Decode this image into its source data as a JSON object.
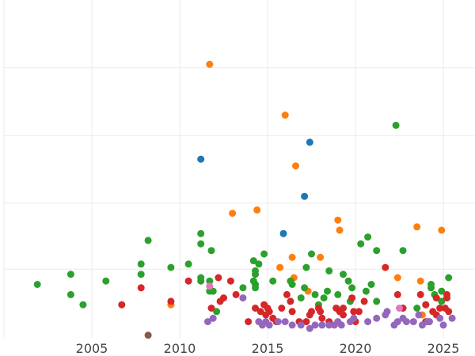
{
  "chart_data": {
    "type": "scatter",
    "title": "",
    "xlabel": "",
    "ylabel": "",
    "xlim": [
      2000.0,
      2026.8
    ],
    "ylim": [
      0,
      1
    ],
    "x_ticks": [
      2005,
      2010,
      2015,
      2020,
      2025
    ],
    "x_tick_labels": [
      "2005",
      "2010",
      "2015",
      "2020",
      "2025"
    ],
    "y_gridlines": [
      0.205,
      0.4,
      0.6,
      0.8
    ],
    "grid": true,
    "legend": "none",
    "colors": {
      "blue": "#1f77b4",
      "orange": "#ff7f0e",
      "green": "#2ca02c",
      "red": "#d62728",
      "purple": "#9467bd",
      "brown": "#8c564b",
      "pink": "#e377c2",
      "grid": "#ebebeb",
      "tick_text": "#444444"
    },
    "series": [
      {
        "color": "#1f77b4",
        "points": [
          [
            2011.2,
            0.53
          ],
          [
            2017.4,
            0.58
          ],
          [
            2017.1,
            0.42
          ],
          [
            2015.9,
            0.31
          ]
        ]
      },
      {
        "color": "#ff7f0e",
        "points": [
          [
            2011.7,
            0.81
          ],
          [
            2016.0,
            0.66
          ],
          [
            2016.6,
            0.51
          ],
          [
            2013.0,
            0.37
          ],
          [
            2014.4,
            0.38
          ],
          [
            2019.0,
            0.35
          ],
          [
            2019.1,
            0.32
          ],
          [
            2023.5,
            0.33
          ],
          [
            2024.9,
            0.32
          ],
          [
            2016.4,
            0.24
          ],
          [
            2018.0,
            0.24
          ],
          [
            2015.7,
            0.21
          ],
          [
            2022.4,
            0.18
          ],
          [
            2023.7,
            0.17
          ],
          [
            2017.3,
            0.14
          ],
          [
            2009.5,
            0.1
          ],
          [
            2023.8,
            0.07
          ],
          [
            2016.5,
            0.18
          ]
        ]
      },
      {
        "color": "#2ca02c",
        "points": [
          [
            2022.3,
            0.63
          ],
          [
            2001.9,
            0.16
          ],
          [
            2003.8,
            0.19
          ],
          [
            2003.8,
            0.13
          ],
          [
            2004.5,
            0.1
          ],
          [
            2005.8,
            0.17
          ],
          [
            2007.8,
            0.19
          ],
          [
            2007.8,
            0.22
          ],
          [
            2008.2,
            0.29
          ],
          [
            2009.5,
            0.21
          ],
          [
            2010.5,
            0.22
          ],
          [
            2011.2,
            0.31
          ],
          [
            2011.2,
            0.28
          ],
          [
            2011.8,
            0.26
          ],
          [
            2011.2,
            0.18
          ],
          [
            2011.2,
            0.17
          ],
          [
            2011.7,
            0.17
          ],
          [
            2011.9,
            0.14
          ],
          [
            2011.7,
            0.14
          ],
          [
            2012.1,
            0.08
          ],
          [
            2013.6,
            0.15
          ],
          [
            2014.2,
            0.23
          ],
          [
            2014.5,
            0.22
          ],
          [
            2014.3,
            0.2
          ],
          [
            2014.3,
            0.19
          ],
          [
            2014.2,
            0.17
          ],
          [
            2014.3,
            0.16
          ],
          [
            2014.3,
            0.15
          ],
          [
            2014.8,
            0.25
          ],
          [
            2015.3,
            0.17
          ],
          [
            2016.3,
            0.17
          ],
          [
            2016.4,
            0.16
          ],
          [
            2016.9,
            0.12
          ],
          [
            2017.1,
            0.15
          ],
          [
            2017.2,
            0.21
          ],
          [
            2017.5,
            0.25
          ],
          [
            2017.7,
            0.13
          ],
          [
            2017.9,
            0.1
          ],
          [
            2018.2,
            0.12
          ],
          [
            2018.4,
            0.14
          ],
          [
            2018.5,
            0.2
          ],
          [
            2019.0,
            0.13
          ],
          [
            2019.3,
            0.19
          ],
          [
            2019.6,
            0.17
          ],
          [
            2019.8,
            0.15
          ],
          [
            2019.7,
            0.11
          ],
          [
            2020.3,
            0.28
          ],
          [
            2020.6,
            0.14
          ],
          [
            2020.7,
            0.3
          ],
          [
            2020.9,
            0.16
          ],
          [
            2021.2,
            0.11
          ],
          [
            2021.2,
            0.26
          ],
          [
            2022.7,
            0.26
          ],
          [
            2023.5,
            0.09
          ],
          [
            2024.3,
            0.15
          ],
          [
            2024.3,
            0.16
          ],
          [
            2024.5,
            0.13
          ],
          [
            2024.9,
            0.14
          ],
          [
            2024.9,
            0.11
          ],
          [
            2025.3,
            0.18
          ],
          [
            2024.0,
            0.1
          ]
        ]
      },
      {
        "color": "#d62728",
        "points": [
          [
            2006.7,
            0.1
          ],
          [
            2007.8,
            0.15
          ],
          [
            2009.5,
            0.11
          ],
          [
            2010.5,
            0.17
          ],
          [
            2012.2,
            0.18
          ],
          [
            2012.9,
            0.17
          ],
          [
            2013.2,
            0.13
          ],
          [
            2012.5,
            0.12
          ],
          [
            2012.3,
            0.11
          ],
          [
            2011.8,
            0.09
          ],
          [
            2013.9,
            0.05
          ],
          [
            2014.3,
            0.09
          ],
          [
            2014.8,
            0.1
          ],
          [
            2015.0,
            0.09
          ],
          [
            2015.1,
            0.08
          ],
          [
            2014.6,
            0.08
          ],
          [
            2014.9,
            0.07
          ],
          [
            2015.3,
            0.06
          ],
          [
            2015.5,
            0.05
          ],
          [
            2015.8,
            0.09
          ],
          [
            2016.1,
            0.13
          ],
          [
            2016.3,
            0.11
          ],
          [
            2016.4,
            0.08
          ],
          [
            2016.8,
            0.05
          ],
          [
            2017.2,
            0.05
          ],
          [
            2017.4,
            0.07
          ],
          [
            2017.5,
            0.08
          ],
          [
            2017.9,
            0.09
          ],
          [
            2018.0,
            0.08
          ],
          [
            2018.1,
            0.06
          ],
          [
            2018.5,
            0.05
          ],
          [
            2018.9,
            0.09
          ],
          [
            2019.1,
            0.08
          ],
          [
            2019.3,
            0.07
          ],
          [
            2019.3,
            0.09
          ],
          [
            2019.8,
            0.12
          ],
          [
            2019.9,
            0.08
          ],
          [
            2020.0,
            0.05
          ],
          [
            2020.2,
            0.08
          ],
          [
            2020.5,
            0.11
          ],
          [
            2021.7,
            0.21
          ],
          [
            2022.4,
            0.13
          ],
          [
            2022.7,
            0.09
          ],
          [
            2023.7,
            0.13
          ],
          [
            2024.0,
            0.1
          ],
          [
            2024.2,
            0.05
          ],
          [
            2024.4,
            0.08
          ],
          [
            2024.6,
            0.12
          ],
          [
            2024.8,
            0.09
          ],
          [
            2025.1,
            0.09
          ],
          [
            2025.2,
            0.12
          ],
          [
            2025.3,
            0.08
          ],
          [
            2025.2,
            0.13
          ],
          [
            2024.6,
            0.07
          ],
          [
            2024.0,
            0.05
          ]
        ]
      },
      {
        "color": "#9467bd",
        "points": [
          [
            2011.6,
            0.05
          ],
          [
            2011.9,
            0.06
          ],
          [
            2013.6,
            0.12
          ],
          [
            2014.5,
            0.05
          ],
          [
            2014.7,
            0.04
          ],
          [
            2014.9,
            0.05
          ],
          [
            2015.1,
            0.04
          ],
          [
            2015.6,
            0.05
          ],
          [
            2016.0,
            0.05
          ],
          [
            2016.4,
            0.04
          ],
          [
            2016.9,
            0.04
          ],
          [
            2017.4,
            0.03
          ],
          [
            2017.7,
            0.04
          ],
          [
            2018.1,
            0.04
          ],
          [
            2018.5,
            0.04
          ],
          [
            2019.0,
            0.05
          ],
          [
            2019.2,
            0.04
          ],
          [
            2019.7,
            0.05
          ],
          [
            2020.7,
            0.05
          ],
          [
            2021.2,
            0.06
          ],
          [
            2021.7,
            0.07
          ],
          [
            2022.2,
            0.04
          ],
          [
            2022.4,
            0.05
          ],
          [
            2022.7,
            0.06
          ],
          [
            2022.9,
            0.05
          ],
          [
            2023.3,
            0.05
          ],
          [
            2023.6,
            0.07
          ],
          [
            2023.8,
            0.04
          ],
          [
            2024.1,
            0.05
          ],
          [
            2024.2,
            0.05
          ],
          [
            2024.8,
            0.06
          ],
          [
            2025.0,
            0.04
          ],
          [
            2025.5,
            0.06
          ],
          [
            2021.8,
            0.08
          ],
          [
            2019.9,
            0.06
          ],
          [
            2018.8,
            0.04
          ]
        ]
      },
      {
        "color": "#8c564b",
        "points": [
          [
            2008.2,
            0.01
          ]
        ]
      },
      {
        "color": "#e377c2",
        "points": [
          [
            2011.7,
            0.155
          ],
          [
            2022.5,
            0.09
          ]
        ]
      }
    ]
  }
}
